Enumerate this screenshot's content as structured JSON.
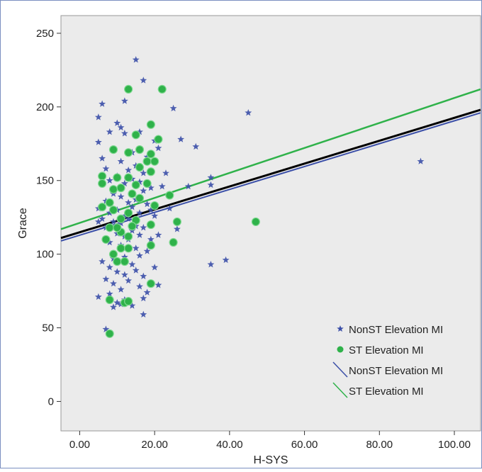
{
  "chart_data": {
    "type": "scatter",
    "title": "",
    "xlabel": "H-SYS",
    "ylabel": "Grace",
    "xlim": [
      -5,
      107
    ],
    "ylim": [
      -20,
      262
    ],
    "x_ticks": [
      0,
      20,
      40,
      60,
      80,
      100
    ],
    "x_tick_labels": [
      "0.00",
      "20.00",
      "40.00",
      "60.00",
      "80.00",
      "100.00"
    ],
    "y_ticks": [
      0,
      50,
      100,
      150,
      200,
      250
    ],
    "y_tick_labels": [
      "0",
      "50",
      "100",
      "150",
      "200",
      "250"
    ],
    "grid": false,
    "legend_position": "bottom-right",
    "colors": {
      "background": "#ebebeb",
      "nonst": "#3b4fa8",
      "st": "#2fb24a",
      "total_fit": "#000000"
    },
    "series": [
      {
        "name": "NonST Elevation MI",
        "marker": "star",
        "points": [
          [
            15,
            232
          ],
          [
            17,
            218
          ],
          [
            12,
            204
          ],
          [
            6,
            202
          ],
          [
            10,
            189
          ],
          [
            11,
            186
          ],
          [
            5,
            193
          ],
          [
            25,
            199
          ],
          [
            45,
            196
          ],
          [
            8,
            183
          ],
          [
            12,
            182
          ],
          [
            16,
            183
          ],
          [
            20,
            177
          ],
          [
            27,
            178
          ],
          [
            31,
            173
          ],
          [
            5,
            176
          ],
          [
            9,
            171
          ],
          [
            14,
            169
          ],
          [
            18,
            166
          ],
          [
            21,
            172
          ],
          [
            6,
            165
          ],
          [
            11,
            163
          ],
          [
            15,
            160
          ],
          [
            7,
            158
          ],
          [
            10,
            153
          ],
          [
            13,
            157
          ],
          [
            17,
            155
          ],
          [
            23,
            155
          ],
          [
            8,
            150
          ],
          [
            12,
            148
          ],
          [
            14,
            151
          ],
          [
            16,
            149
          ],
          [
            19,
            145
          ],
          [
            22,
            146
          ],
          [
            29,
            146
          ],
          [
            35,
            147
          ],
          [
            35,
            152
          ],
          [
            5,
            131
          ],
          [
            7,
            136
          ],
          [
            9,
            141
          ],
          [
            11,
            139
          ],
          [
            13,
            135
          ],
          [
            15,
            137
          ],
          [
            17,
            143
          ],
          [
            18,
            134
          ],
          [
            8,
            128
          ],
          [
            10,
            130
          ],
          [
            12,
            126
          ],
          [
            14,
            132
          ],
          [
            16,
            128
          ],
          [
            19,
            130
          ],
          [
            24,
            131
          ],
          [
            6,
            124
          ],
          [
            9,
            122
          ],
          [
            11,
            121
          ],
          [
            13,
            124
          ],
          [
            15,
            119
          ],
          [
            17,
            118
          ],
          [
            20,
            126
          ],
          [
            26,
            117
          ],
          [
            5,
            122
          ],
          [
            7,
            118
          ],
          [
            10,
            114
          ],
          [
            12,
            112
          ],
          [
            14,
            116
          ],
          [
            16,
            113
          ],
          [
            19,
            110
          ],
          [
            8,
            108
          ],
          [
            11,
            106
          ],
          [
            13,
            110
          ],
          [
            15,
            104
          ],
          [
            18,
            102
          ],
          [
            21,
            113
          ],
          [
            9,
            97
          ],
          [
            12,
            98
          ],
          [
            14,
            93
          ],
          [
            16,
            99
          ],
          [
            6,
            95
          ],
          [
            8,
            91
          ],
          [
            10,
            88
          ],
          [
            12,
            86
          ],
          [
            15,
            89
          ],
          [
            17,
            85
          ],
          [
            20,
            91
          ],
          [
            7,
            83
          ],
          [
            9,
            80
          ],
          [
            11,
            76
          ],
          [
            13,
            82
          ],
          [
            16,
            78
          ],
          [
            18,
            74
          ],
          [
            21,
            79
          ],
          [
            5,
            71
          ],
          [
            8,
            73
          ],
          [
            10,
            67
          ],
          [
            12,
            69
          ],
          [
            14,
            65
          ],
          [
            17,
            70
          ],
          [
            9,
            64
          ],
          [
            11,
            66
          ],
          [
            17,
            59
          ],
          [
            7,
            49
          ],
          [
            35,
            93
          ],
          [
            39,
            96
          ],
          [
            91,
            163
          ]
        ]
      },
      {
        "name": "ST Elevation MI",
        "marker": "circle",
        "points": [
          [
            13,
            212
          ],
          [
            22,
            212
          ],
          [
            19,
            188
          ],
          [
            15,
            181
          ],
          [
            21,
            178
          ],
          [
            9,
            171
          ],
          [
            13,
            169
          ],
          [
            16,
            171
          ],
          [
            19,
            168
          ],
          [
            6,
            153
          ],
          [
            10,
            152
          ],
          [
            13,
            152
          ],
          [
            18,
            163
          ],
          [
            20,
            163
          ],
          [
            16,
            159
          ],
          [
            19,
            156
          ],
          [
            6,
            148
          ],
          [
            9,
            144
          ],
          [
            11,
            145
          ],
          [
            15,
            147
          ],
          [
            18,
            148
          ],
          [
            14,
            141
          ],
          [
            16,
            138
          ],
          [
            24,
            140
          ],
          [
            8,
            135
          ],
          [
            6,
            132
          ],
          [
            9,
            130
          ],
          [
            20,
            133
          ],
          [
            13,
            128
          ],
          [
            11,
            124
          ],
          [
            15,
            123
          ],
          [
            26,
            122
          ],
          [
            47,
            122
          ],
          [
            8,
            118
          ],
          [
            14,
            119
          ],
          [
            19,
            120
          ],
          [
            11,
            115
          ],
          [
            10,
            118
          ],
          [
            7,
            110
          ],
          [
            13,
            112
          ],
          [
            25,
            108
          ],
          [
            19,
            106
          ],
          [
            11,
            104
          ],
          [
            13,
            104
          ],
          [
            9,
            100
          ],
          [
            10,
            95
          ],
          [
            12,
            95
          ],
          [
            19,
            80
          ],
          [
            8,
            69
          ],
          [
            12,
            67
          ],
          [
            13,
            68
          ],
          [
            8,
            46
          ]
        ]
      }
    ],
    "fit_lines": [
      {
        "name": "NonST Elevation MI",
        "x": [
          -5,
          107
        ],
        "y": [
          109,
          196
        ]
      },
      {
        "name": "ST Elevation MI",
        "x": [
          -5,
          107
        ],
        "y": [
          117,
          212
        ]
      },
      {
        "name": "",
        "x": [
          -5,
          107
        ],
        "y": [
          111,
          198
        ]
      }
    ],
    "legend": [
      {
        "label": "NonST Elevation MI",
        "kind": "star",
        "color": "#3b4fa8"
      },
      {
        "label": "ST Elevation MI",
        "kind": "circle",
        "color": "#2fb24a"
      },
      {
        "label": "NonST Elevation MI",
        "kind": "line",
        "color": "#3b4fa8"
      },
      {
        "label": "ST Elevation MI",
        "kind": "line",
        "color": "#2fb24a"
      }
    ]
  }
}
